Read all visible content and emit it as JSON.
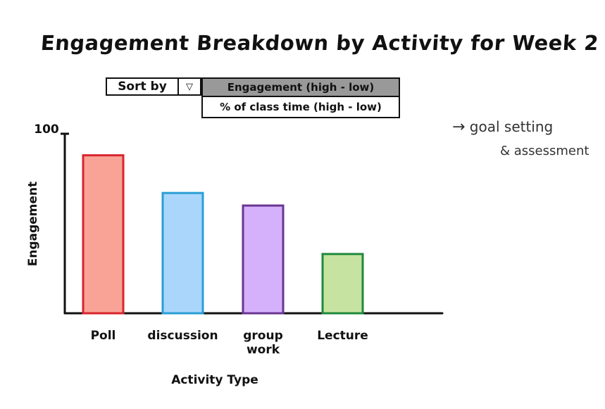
{
  "title": "Engagement Breakdown by Activity for Week 2",
  "sort": {
    "label": "Sort by",
    "arrow": "▽",
    "options": [
      "Engagement (high - low)",
      "% of class time (high - low)"
    ],
    "selected_index": 0,
    "selected_color": "#999999"
  },
  "side_note": {
    "arrow": "→",
    "line1": "goal setting",
    "line2": "& assessment"
  },
  "chart_data": {
    "type": "bar",
    "categories": [
      "Poll",
      "discussion",
      "group work",
      "Lecture"
    ],
    "values": [
      88,
      67,
      60,
      33
    ],
    "ylim": [
      0,
      100
    ],
    "yticks": [
      "100"
    ],
    "xlabel": "Activity Type",
    "ylabel": "Engagement",
    "fill_colors": [
      "#f8a396",
      "#aad6fb",
      "#d6b1fb",
      "#c7e3a1"
    ],
    "edge_colors": [
      "#d8262e",
      "#2a9ed4",
      "#6a3591",
      "#1f8a3c"
    ]
  }
}
